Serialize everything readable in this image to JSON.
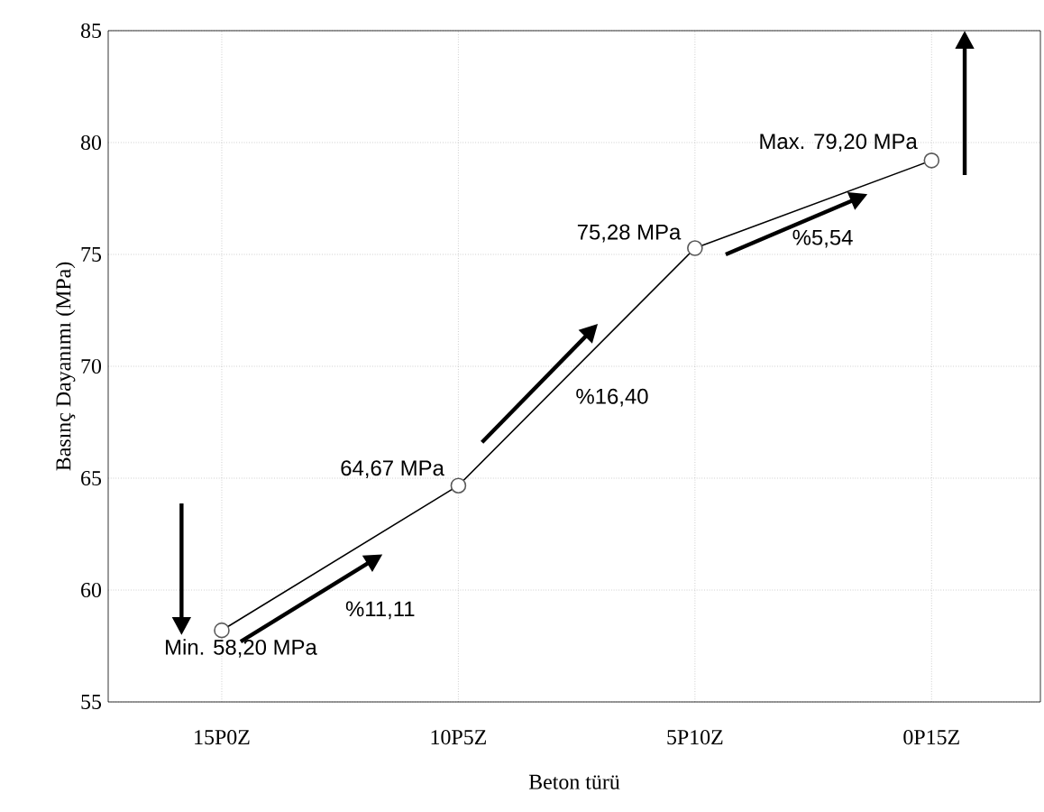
{
  "chart_data": {
    "type": "line",
    "xlabel": "Beton türü",
    "ylabel": "Basınç Dayanımı (MPa)",
    "categories": [
      "15P0Z",
      "10P5Z",
      "5P10Z",
      "0P15Z"
    ],
    "values": [
      58.2,
      64.67,
      75.28,
      79.2
    ],
    "value_labels": [
      "Min. 58,20 MPa",
      "64,67 MPa",
      "75,28 MPa",
      "Max. 79,20 MPa"
    ],
    "color": "#000000",
    "marker": "circle",
    "line_style": "solid",
    "grid": true,
    "ylim": [
      55,
      85
    ],
    "yticks": [
      55,
      60,
      65,
      70,
      75,
      80,
      85
    ],
    "annotations": [
      "%11,11",
      "%16,40",
      "%5,54"
    ]
  }
}
